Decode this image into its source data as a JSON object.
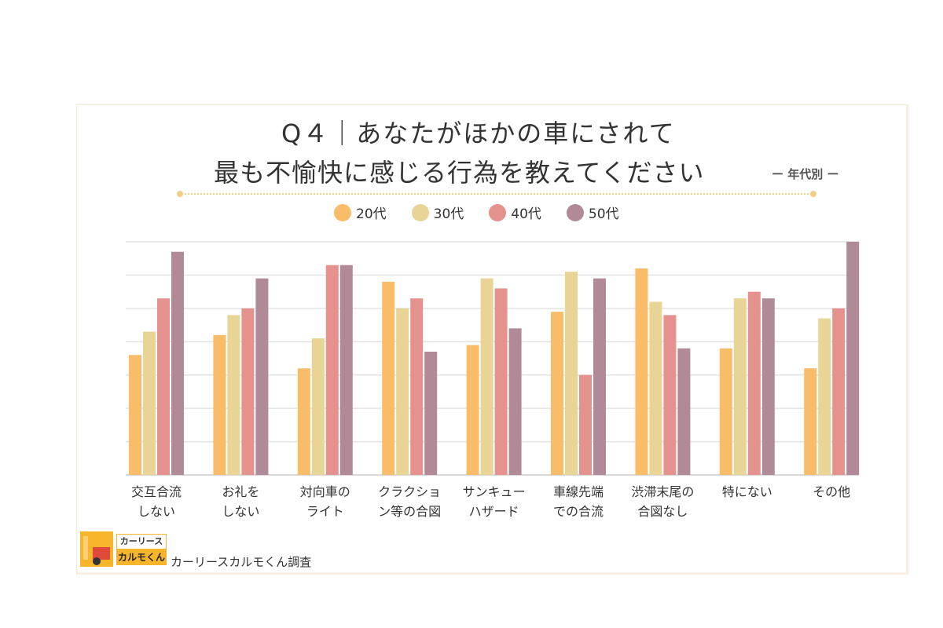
{
  "chart_data": {
    "type": "bar",
    "title": "Q４｜あなたがほかの車にされて",
    "title_line2": "最も不愉快に感じる行為を教えてください",
    "subtitle": "ー 年代別 ー",
    "categories": [
      "交互合流\nしない",
      "お礼を\nしない",
      "対向車の\nライト",
      "クラクショ\nン等の合図",
      "サンキュー\nハザード",
      "車線先端\nでの合流",
      "渋滞末尾の\n合図なし",
      "特にない",
      "その他"
    ],
    "series": [
      {
        "name": "20代",
        "color": "#f9bd69",
        "values": [
          3.6,
          4.2,
          3.2,
          5.8,
          3.9,
          4.9,
          6.2,
          3.8,
          3.2
        ]
      },
      {
        "name": "30代",
        "color": "#e8d596",
        "values": [
          4.3,
          4.8,
          4.1,
          5.0,
          5.9,
          6.1,
          5.2,
          5.3,
          4.7
        ]
      },
      {
        "name": "40代",
        "color": "#e5928f",
        "values": [
          5.3,
          5.0,
          6.3,
          5.3,
          5.6,
          3.0,
          4.8,
          5.5,
          5.0
        ]
      },
      {
        "name": "50代",
        "color": "#b08a97",
        "values": [
          6.7,
          5.9,
          6.3,
          3.7,
          4.4,
          5.9,
          3.8,
          5.3,
          7.0
        ]
      }
    ],
    "ylim": [
      0,
      7
    ],
    "grid": true,
    "y_tick_labels_shown": false,
    "legend": "top-center",
    "xlabel": "",
    "ylabel": ""
  },
  "logo": {
    "line1": "カーリース",
    "line2": "カルモくん"
  },
  "source": "カーリースカルモくん調査"
}
